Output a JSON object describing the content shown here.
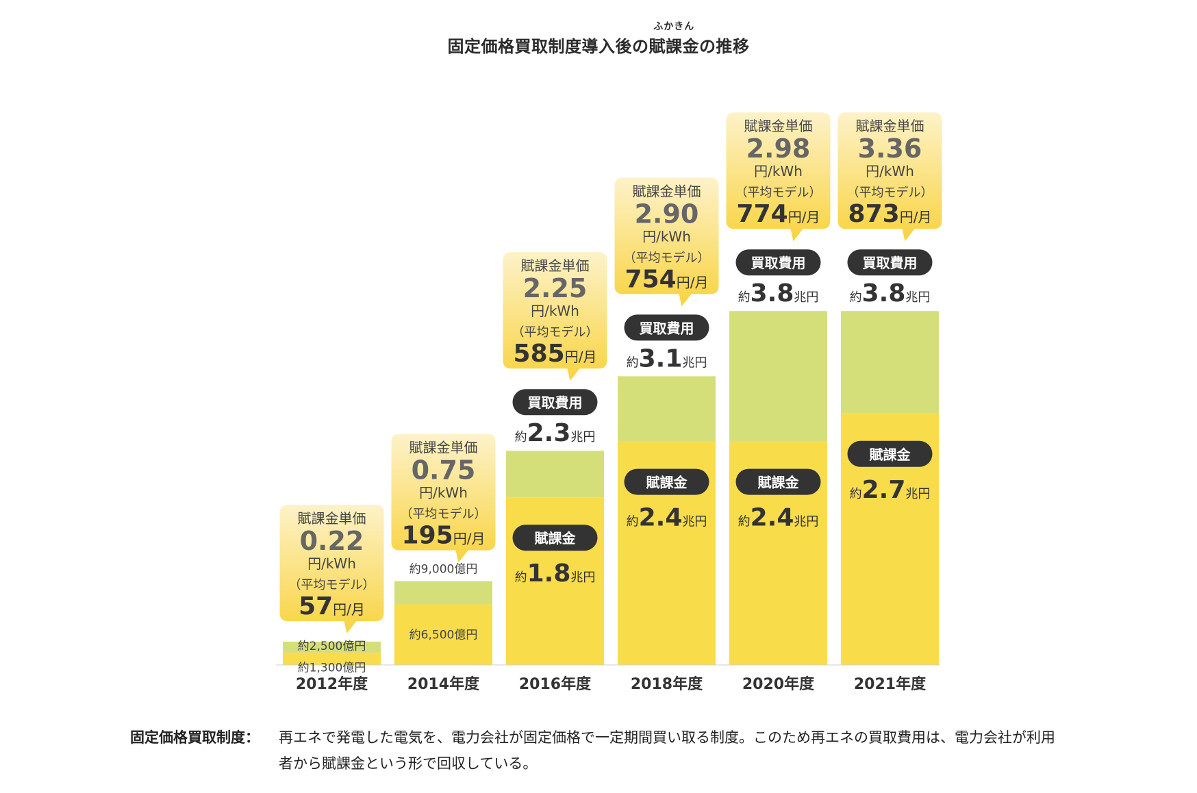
{
  "title": {
    "part1": "固定価格買取制度導入後の",
    "ruby_base": "賦課金",
    "ruby_reading": "ふかきん",
    "part2": "の推移"
  },
  "legend_labels": {
    "unit_price": "賦課金単価",
    "unit": "円/kWh",
    "model": "（平均モデル）",
    "monthly_unit": "円/月",
    "purchase_cost": "買取費用",
    "levy": "賦課金",
    "approx": "約",
    "trillion_yen": "兆円"
  },
  "colors": {
    "levy": "#f8dc4a",
    "purchase_cost": "#d5df7a",
    "callout_top": "#fdf1c4",
    "callout_bottom": "#f8d545",
    "pill": "#333333"
  },
  "chart_data": {
    "type": "bar",
    "stacked": true,
    "categories": [
      "2012年度",
      "2014年度",
      "2016年度",
      "2018年度",
      "2020年度",
      "2021年度"
    ],
    "ylabel": "",
    "series": [
      {
        "name": "賦課金",
        "unit": "兆円",
        "values": [
          0.13,
          0.65,
          1.8,
          2.4,
          2.4,
          2.7
        ]
      },
      {
        "name": "買取費用",
        "unit": "兆円",
        "values": [
          0.25,
          0.9,
          2.3,
          3.1,
          3.8,
          3.8
        ]
      }
    ],
    "bars": [
      {
        "year": "2012年度",
        "levy": 0.13,
        "purchase": 0.25,
        "levy_label": "約1,300億円",
        "purchase_label": "約2,500億円",
        "unit_price": "0.22",
        "monthly": "57",
        "label_style": "small"
      },
      {
        "year": "2014年度",
        "levy": 0.65,
        "purchase": 0.9,
        "levy_label": "約6,500億円",
        "purchase_label": "約9,000億円",
        "unit_price": "0.75",
        "monthly": "195",
        "label_style": "small"
      },
      {
        "year": "2016年度",
        "levy": 1.8,
        "purchase": 2.3,
        "levy_value": "1.8",
        "purchase_value": "2.3",
        "unit_price": "2.25",
        "monthly": "585",
        "label_style": "large"
      },
      {
        "year": "2018年度",
        "levy": 2.4,
        "purchase": 3.1,
        "levy_value": "2.4",
        "purchase_value": "3.1",
        "unit_price": "2.90",
        "monthly": "754",
        "label_style": "large"
      },
      {
        "year": "2020年度",
        "levy": 2.4,
        "purchase": 3.8,
        "levy_value": "2.4",
        "purchase_value": "3.8",
        "unit_price": "2.98",
        "monthly": "774",
        "label_style": "large"
      },
      {
        "year": "2021年度",
        "levy": 2.7,
        "purchase": 3.8,
        "levy_value": "2.7",
        "purchase_value": "3.8",
        "unit_price": "3.36",
        "monthly": "873",
        "label_style": "large"
      }
    ]
  },
  "footer": {
    "term": "固定価格買取制度：",
    "description": "再エネで発電した電気を、電力会社が固定価格で一定期間買い取る制度。このため再エネの買取費用は、電力会社が利用者から賦課金という形で回収している。"
  }
}
